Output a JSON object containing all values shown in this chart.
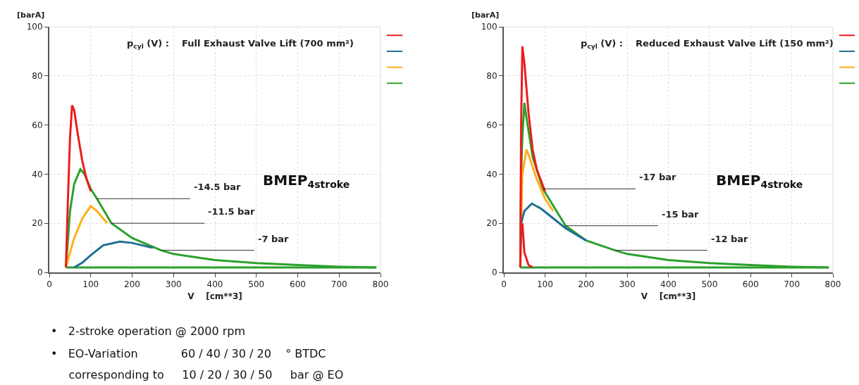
{
  "chart_data": [
    {
      "type": "line",
      "title": "p$_{cyl}$ (V) :    Full Exhaust Valve Lift (700 mm²)",
      "xlabel": "V    [cm**3]",
      "ylabel": "[barA]",
      "xlim": [
        0,
        800
      ],
      "ylim": [
        0,
        100
      ],
      "xticks": [
        0,
        100,
        200,
        300,
        400,
        500,
        600,
        700,
        800
      ],
      "yticks": [
        0,
        20,
        40,
        60,
        80,
        100
      ],
      "grid": true,
      "series": [
        {
          "color": "#ee1c1c",
          "x": [
            40,
            45,
            50,
            55,
            60,
            70,
            80,
            90,
            100
          ],
          "values": [
            2,
            30,
            55,
            68,
            66,
            55,
            45,
            38,
            33
          ]
        },
        {
          "color": "#1f6f94",
          "x": [
            60,
            80,
            100,
            130,
            170,
            200,
            250
          ],
          "values": [
            2,
            4,
            7,
            11,
            12.5,
            12,
            10
          ]
        },
        {
          "color": "#ffae1a",
          "x": [
            40,
            60,
            80,
            100,
            115,
            140
          ],
          "values": [
            2,
            14,
            22,
            27,
            25,
            20
          ]
        },
        {
          "color": "#2ca02c",
          "x": [
            40,
            50,
            60,
            75,
            85,
            100,
            115,
            150,
            200,
            270,
            300,
            400,
            500,
            600,
            700,
            790
          ],
          "values": [
            2,
            25,
            36,
            42,
            40,
            34,
            30,
            20,
            14,
            9,
            7.5,
            5,
            3.8,
            3,
            2.3,
            2
          ]
        },
        {
          "color": "#2ca02c",
          "x": [
            40,
            790
          ],
          "values": [
            2,
            2
          ]
        }
      ],
      "annotations": [
        {
          "text": "-14.5 bar",
          "x": 115,
          "y": 30
        },
        {
          "text": "-11.5 bar",
          "x": 150,
          "y": 20
        },
        {
          "text": "-7 bar",
          "x": 270,
          "y": 9
        },
        "BMEP$_{4stroke}$",
        "•   2-stroke operation @ 2000 rpm",
        "•   EO-Variation            60 / 40 / 30 / 20    ° BTDC",
        "     corresponding to     10 / 20 / 30 / 50     bar @ EO"
      ]
    },
    {
      "type": "line",
      "title": "p$_{cyl}$ (V) :    Reduced Exhaust Valve Lift (150 mm²)",
      "xlabel": "V    [cm**3]",
      "ylabel": "[barA]",
      "xlim": [
        0,
        800
      ],
      "ylim": [
        0,
        100
      ],
      "xticks": [
        0,
        100,
        200,
        300,
        400,
        500,
        600,
        700,
        800
      ],
      "yticks": [
        0,
        20,
        40,
        60,
        80,
        100
      ],
      "grid": true,
      "series": [
        {
          "color": "#ee1c1c",
          "x": [
            40,
            42,
            45,
            50,
            60,
            70,
            80,
            100,
            null,
            45,
            50,
            60,
            70
          ],
          "values": [
            2,
            60,
            92,
            85,
            65,
            50,
            42,
            33,
            null,
            20,
            8,
            3,
            2
          ]
        },
        {
          "color": "#1f6f94",
          "x": [
            40,
            42,
            50,
            68,
            90,
            120,
            150,
            200
          ],
          "values": [
            2,
            20,
            25,
            28,
            26,
            22,
            18,
            13
          ]
        },
        {
          "color": "#ffae1a",
          "x": [
            40,
            45,
            55,
            60,
            80,
            100,
            120
          ],
          "values": [
            2,
            40,
            50,
            48,
            38,
            30,
            25
          ]
        },
        {
          "color": "#2ca02c",
          "x": [
            40,
            42,
            45,
            50,
            55,
            70,
            95,
            150,
            200,
            270,
            300,
            400,
            500,
            600,
            700,
            790
          ],
          "values": [
            2,
            40,
            55,
            69,
            63,
            47,
            34,
            19,
            13,
            9,
            7.5,
            5,
            3.8,
            3,
            2.3,
            2
          ]
        },
        {
          "color": "#2ca02c",
          "x": [
            40,
            790
          ],
          "values": [
            2,
            2
          ]
        }
      ],
      "annotations": [
        {
          "text": "-17 bar",
          "x": 95,
          "y": 34
        },
        {
          "text": "-15 bar",
          "x": 150,
          "y": 19
        },
        {
          "text": "-12 bar",
          "x": 270,
          "y": 9
        },
        "BMEP$_{4stroke}$"
      ]
    }
  ]
}
